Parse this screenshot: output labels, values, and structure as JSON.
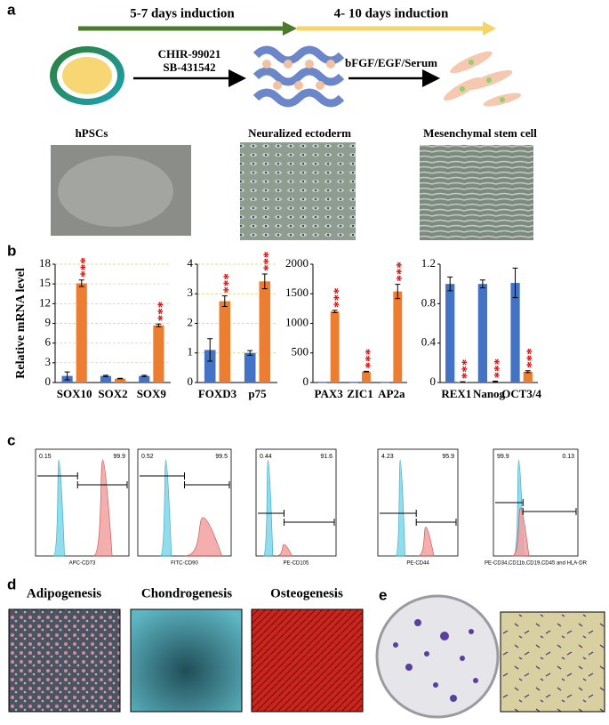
{
  "panel_labels": [
    "a",
    "b",
    "c",
    "d",
    "e"
  ],
  "panel_a": {
    "stage1": "5-7 days induction",
    "stage2": "4- 10 days induction",
    "factors1": [
      "CHIR-99021",
      "SB-431542"
    ],
    "factors2": "bFGF/EGF/Serum",
    "images": [
      "hPSCs",
      "Neuralized ectoderm",
      "Mesenchymal stem cell"
    ]
  },
  "chart_data": [
    {
      "type": "bar",
      "ylabel": "Relative mRNA level",
      "categories": [
        "SOX10",
        "SOX2",
        "SOX9"
      ],
      "ylim": [
        0,
        18
      ],
      "yticks": [
        0,
        3,
        6,
        9,
        12,
        15,
        18
      ],
      "grid": true,
      "series": [
        {
          "color": "#4472c4",
          "values": [
            1.0,
            1.0,
            1.0
          ],
          "errors": [
            0.6,
            0.1,
            0.1
          ]
        },
        {
          "color": "#ed7d31",
          "values": [
            15.1,
            0.6,
            8.7
          ],
          "errors": [
            0.5,
            0.05,
            0.2
          ]
        }
      ],
      "annotations": [
        "***",
        null,
        "***"
      ]
    },
    {
      "type": "bar",
      "categories": [
        "FOXD3",
        "p75"
      ],
      "ylim": [
        0,
        4
      ],
      "yticks": [
        0,
        1,
        2,
        3,
        4
      ],
      "grid": true,
      "series": [
        {
          "color": "#4472c4",
          "values": [
            1.1,
            1.0
          ],
          "errors": [
            0.38,
            0.08
          ]
        },
        {
          "color": "#ed7d31",
          "values": [
            2.75,
            3.42
          ],
          "errors": [
            0.18,
            0.25
          ]
        }
      ],
      "annotations": [
        "***",
        "***"
      ]
    },
    {
      "type": "bar",
      "categories": [
        "PAX3",
        "ZIC1",
        "AP2a"
      ],
      "ylim": [
        0,
        2000
      ],
      "yticks": [
        0,
        500,
        1000,
        1500,
        2000
      ],
      "grid": false,
      "series": [
        {
          "color": "#4472c4",
          "values": [
            1,
            1,
            1
          ],
          "errors": [
            0,
            0,
            0
          ]
        },
        {
          "color": "#ed7d31",
          "values": [
            1200,
            185,
            1540
          ],
          "errors": [
            20,
            5,
            120
          ]
        }
      ],
      "annotations": [
        "***",
        "***",
        "***"
      ]
    },
    {
      "type": "bar",
      "categories": [
        "REX1",
        "Nanog",
        "OCT3/4"
      ],
      "ylim": [
        0,
        1.2
      ],
      "yticks": [
        0,
        0.4,
        0.8,
        1.2
      ],
      "grid": false,
      "series": [
        {
          "color": "#4472c4",
          "values": [
            1.0,
            1.0,
            1.01
          ],
          "errors": [
            0.07,
            0.04,
            0.15
          ]
        },
        {
          "color": "#ed7d31",
          "values": [
            0.005,
            0.01,
            0.11
          ],
          "errors": [
            0.003,
            0.005,
            0.01
          ]
        }
      ],
      "annotations": [
        "***",
        "***",
        "***"
      ]
    }
  ],
  "panel_c": [
    {
      "left": "0.15",
      "right": "99.9",
      "xlabel": "APC-CD73"
    },
    {
      "left": "0.52",
      "right": "99.5",
      "xlabel": "FITC-CD90"
    },
    {
      "left": "0.44",
      "right": "91.6",
      "xlabel": "PE-CD105"
    },
    {
      "left": "4.23",
      "right": "95.9",
      "xlabel": "PE-CD44"
    },
    {
      "left": "99.9",
      "right": "0.13",
      "xlabel": "PE-CD34,CD11b,CD19,CD45 and HLA-DR"
    }
  ],
  "panel_d": [
    "Adipogenesis",
    "Chondrogenesis",
    "Osteogenesis"
  ]
}
